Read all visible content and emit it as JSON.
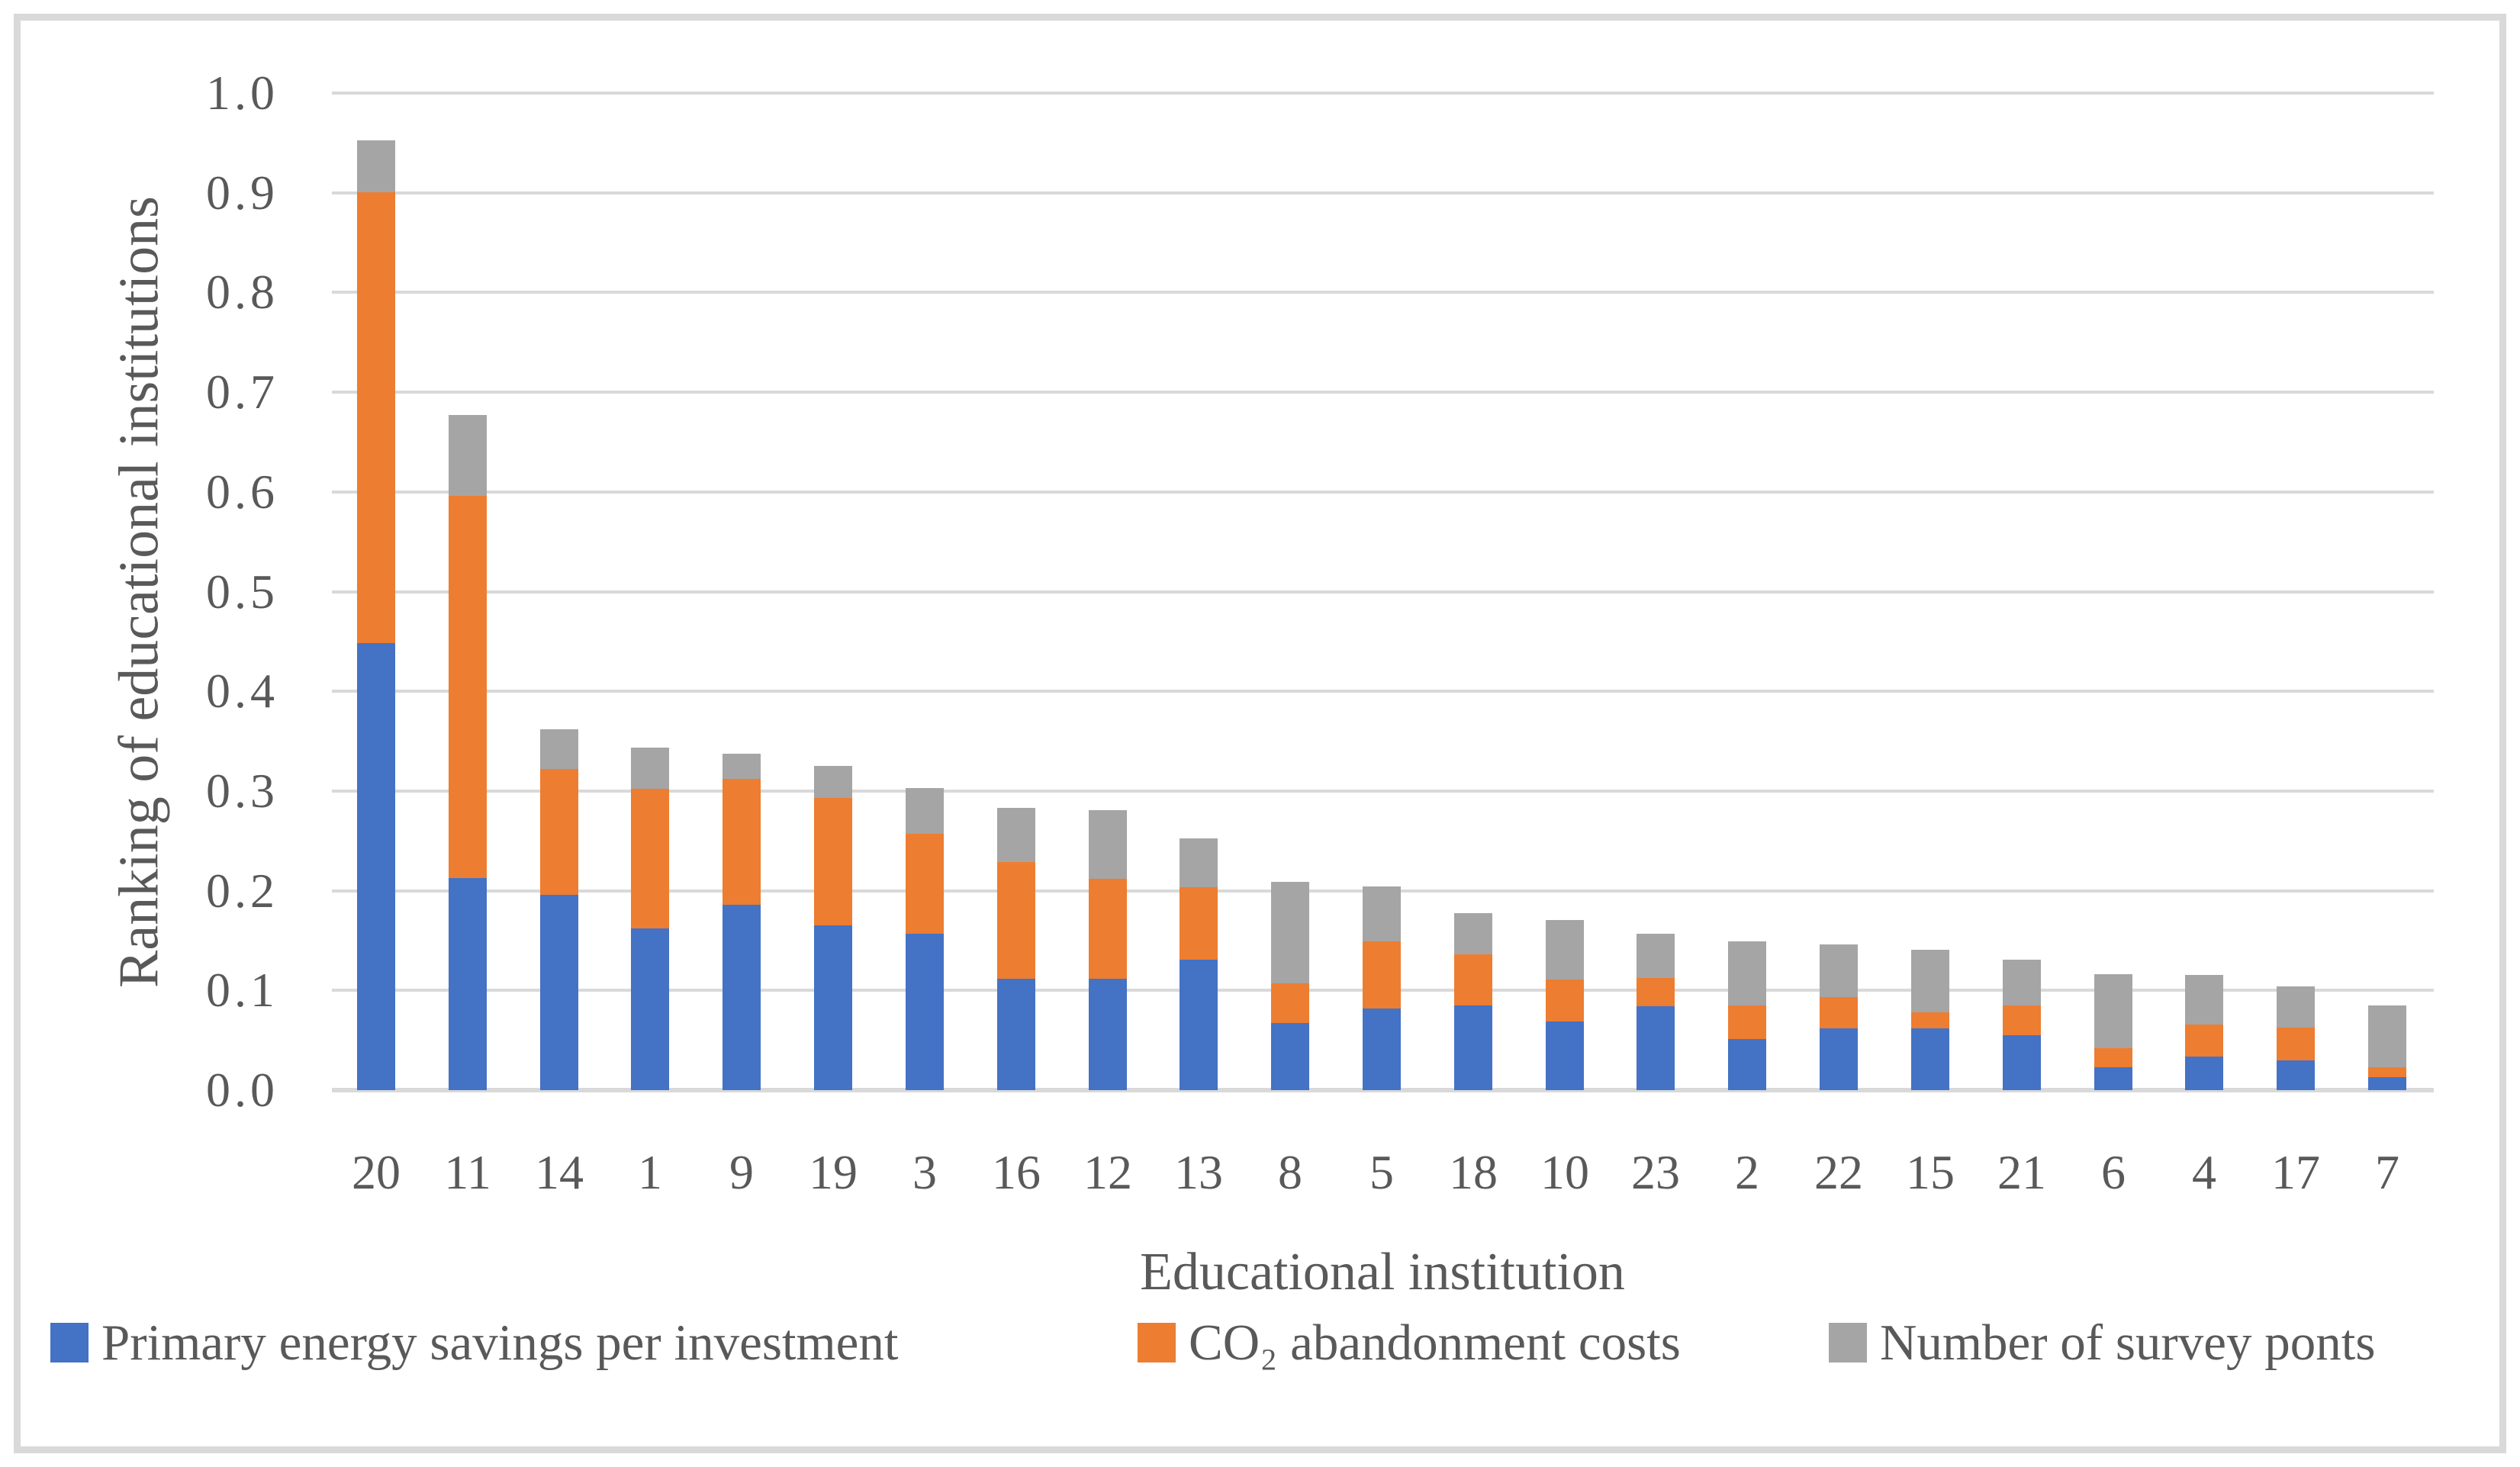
{
  "figure": {
    "y_axis_title": "Ranking of educational institutions",
    "x_axis_title": "Educational institution",
    "legend": [
      {
        "label": "Primary energy savings per investment",
        "color": "#4472C4",
        "swatch": "blue-square"
      },
      {
        "label": "CO₂ abandonment costs",
        "color": "#ED7D31",
        "swatch": "orange-square"
      },
      {
        "label": "Number of survey ponts",
        "color": "#A5A5A5",
        "swatch": "gray-square"
      }
    ],
    "gridline_color": "#D9D9D9",
    "text_color": "#595959",
    "background_color": "#FFFFFF"
  },
  "chart_data": {
    "type": "bar",
    "stacked": true,
    "title": "",
    "xlabel": "Educational institution",
    "ylabel": "Ranking of educational institutions",
    "ylim": [
      0.0,
      1.0
    ],
    "ytick_step": 0.1,
    "yticks": [
      "1.0",
      "0.9",
      "0.8",
      "0.7",
      "0.6",
      "0.5",
      "0.4",
      "0.3",
      "0.2",
      "0.1",
      "0.0"
    ],
    "grid": "horizontal",
    "legend_position": "bottom",
    "categories": [
      "20",
      "11",
      "14",
      "1",
      "9",
      "19",
      "3",
      "16",
      "12",
      "13",
      "8",
      "5",
      "18",
      "10",
      "23",
      "2",
      "22",
      "15",
      "21",
      "6",
      "4",
      "17",
      "7"
    ],
    "series": [
      {
        "name": "Primary energy savings per investment",
        "color": "#4472C4",
        "values": [
          0.448,
          0.213,
          0.196,
          0.162,
          0.186,
          0.165,
          0.157,
          0.112,
          0.112,
          0.131,
          0.067,
          0.082,
          0.085,
          0.069,
          0.084,
          0.051,
          0.062,
          0.062,
          0.055,
          0.023,
          0.034,
          0.03,
          0.013
        ]
      },
      {
        "name": "CO₂ abandonment costs",
        "color": "#ED7D31",
        "values": [
          0.452,
          0.383,
          0.126,
          0.14,
          0.126,
          0.128,
          0.1,
          0.117,
          0.1,
          0.073,
          0.04,
          0.067,
          0.051,
          0.042,
          0.028,
          0.034,
          0.031,
          0.016,
          0.03,
          0.019,
          0.032,
          0.033,
          0.01
        ]
      },
      {
        "name": "Number of survey ponts",
        "color": "#A5A5A5",
        "values": [
          0.052,
          0.081,
          0.04,
          0.041,
          0.025,
          0.032,
          0.046,
          0.054,
          0.069,
          0.049,
          0.102,
          0.055,
          0.041,
          0.06,
          0.044,
          0.064,
          0.053,
          0.063,
          0.046,
          0.074,
          0.05,
          0.041,
          0.062
        ]
      }
    ],
    "stacked_totals": [
      0.952,
      0.677,
      0.362,
      0.343,
      0.337,
      0.325,
      0.303,
      0.283,
      0.281,
      0.253,
      0.209,
      0.204,
      0.177,
      0.171,
      0.156,
      0.149,
      0.146,
      0.141,
      0.131,
      0.116,
      0.116,
      0.104,
      0.085
    ]
  }
}
